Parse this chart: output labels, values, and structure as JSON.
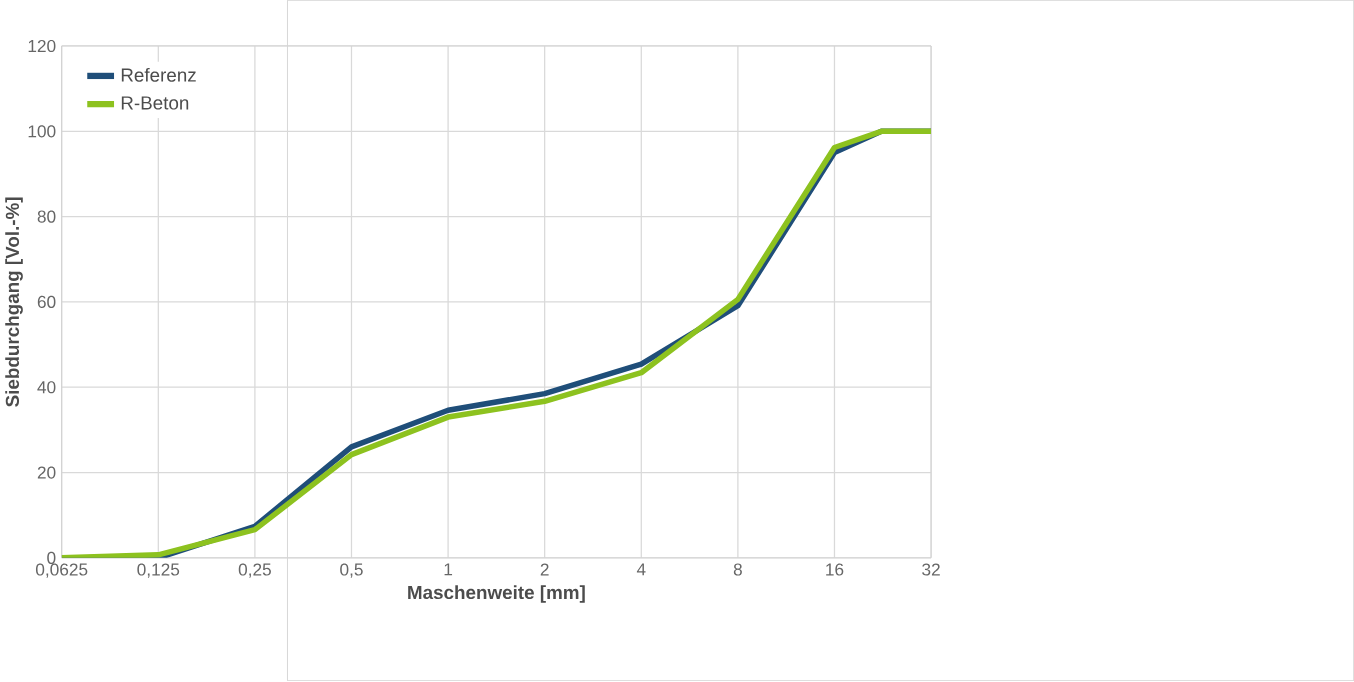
{
  "chart_data": {
    "type": "line",
    "xlabel": "Maschenweite [mm]",
    "ylabel": "Siebdurchgang [Vol.-%]",
    "log": "x",
    "xlim": [
      0.0625,
      32
    ],
    "ylim": [
      0,
      120
    ],
    "xticks": [
      {
        "value": 0.0625,
        "label": "0,0625"
      },
      {
        "value": 0.125,
        "label": "0,125"
      },
      {
        "value": 0.25,
        "label": "0,25"
      },
      {
        "value": 0.5,
        "label": "0,5"
      },
      1,
      2,
      4,
      8,
      16,
      32
    ],
    "yticks": [
      0,
      20,
      40,
      60,
      80,
      100,
      120
    ],
    "grid": true,
    "legend": "top left",
    "marker": "none",
    "line_style": "solid",
    "series": [
      {
        "name": "Referenz",
        "color": "#1f4e79",
        "x": [
          0.0625,
          0.125,
          0.25,
          0.5,
          1,
          2,
          4,
          8,
          16,
          22.4,
          32
        ],
        "values": [
          0,
          0,
          7.4,
          26,
          34.6,
          38.5,
          45.4,
          59.1,
          95,
          100,
          100
        ]
      },
      {
        "name": "R-Beton",
        "color": "#8dc21f",
        "x": [
          0.0625,
          0.125,
          0.25,
          0.5,
          1,
          2,
          4,
          8,
          16,
          22.4,
          32
        ],
        "values": [
          0,
          0.7,
          6.6,
          24.2,
          33,
          36.7,
          43.4,
          60.6,
          96.2,
          100,
          100
        ]
      }
    ]
  }
}
